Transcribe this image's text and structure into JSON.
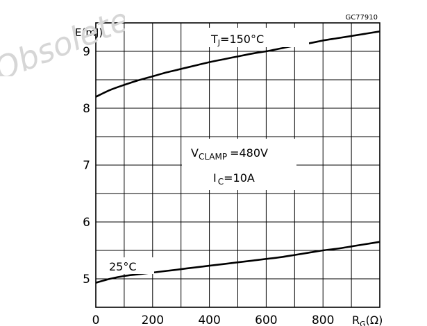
{
  "chart_data": {
    "type": "line",
    "figure_code": "GC77910",
    "ylabel": "E(mJ)",
    "xlabel_main": "R",
    "xlabel_sub": "G",
    "xlabel_unit": "(Ω)",
    "xlim": [
      0,
      1000
    ],
    "ylim": [
      4.5,
      9.5
    ],
    "x_ticks": [
      0,
      200,
      400,
      600,
      800
    ],
    "x_tick_labels": [
      "0",
      "200",
      "400",
      "600",
      "800"
    ],
    "y_ticks": [
      5,
      6,
      7,
      8,
      9
    ],
    "y_tick_labels": [
      "5",
      "6",
      "7",
      "8",
      "9"
    ],
    "grid": true,
    "series": [
      {
        "name": "TJ=150°C",
        "label_main": "T",
        "label_sub": "J",
        "label_rest": "=150°C",
        "x": [
          0,
          50,
          100,
          150,
          200,
          250,
          300,
          350,
          400,
          450,
          500,
          550,
          600,
          650,
          700,
          750,
          800,
          850,
          900,
          950,
          1000
        ],
        "y": [
          8.2,
          8.32,
          8.41,
          8.49,
          8.56,
          8.63,
          8.69,
          8.75,
          8.81,
          8.86,
          8.91,
          8.96,
          9.0,
          9.05,
          9.1,
          9.14,
          9.19,
          9.23,
          9.27,
          9.31,
          9.35
        ]
      },
      {
        "name": "25°C",
        "label_main": "25°C",
        "x": [
          0,
          50,
          100,
          150,
          200,
          250,
          300,
          350,
          400,
          450,
          500,
          550,
          600,
          650,
          700,
          750,
          800,
          850,
          900,
          950,
          1000
        ],
        "y": [
          4.93,
          5.0,
          5.05,
          5.08,
          5.11,
          5.14,
          5.17,
          5.2,
          5.23,
          5.26,
          5.29,
          5.32,
          5.35,
          5.38,
          5.42,
          5.46,
          5.5,
          5.53,
          5.57,
          5.61,
          5.65
        ]
      }
    ],
    "conditions": {
      "vclamp_main": "V",
      "vclamp_sub": "CLAMP",
      "vclamp_value": "=480V",
      "ic_main": "I",
      "ic_sub": "C",
      "ic_value": "=10A"
    }
  },
  "watermark": {
    "text": "Obsolete"
  }
}
